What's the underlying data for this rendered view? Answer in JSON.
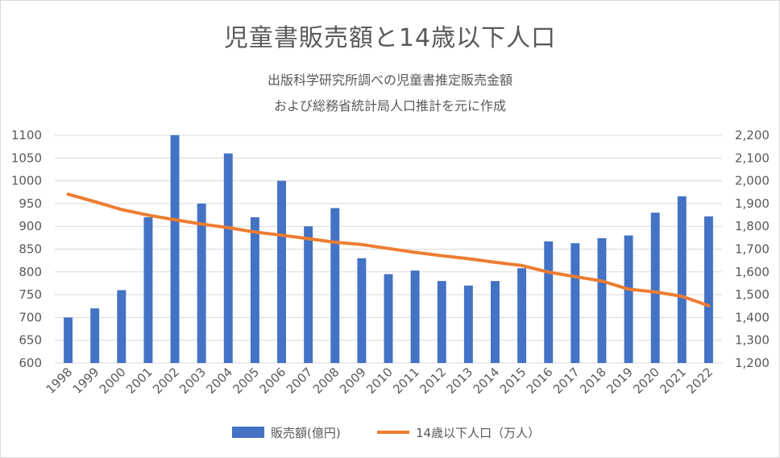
{
  "chart_data": {
    "type": "bar",
    "title": "児童書販売額と14歳以下人口",
    "subtitle_lines": [
      "出版科学研究所調べの児童書推定販売金額",
      "および総務省統計局人口推計を元に作成"
    ],
    "categories": [
      "1998",
      "1999",
      "2000",
      "2001",
      "2002",
      "2003",
      "2004",
      "2005",
      "2006",
      "2007",
      "2008",
      "2009",
      "2010",
      "2011",
      "2012",
      "2013",
      "2014",
      "2015",
      "2016",
      "2017",
      "2018",
      "2019",
      "2020",
      "2021",
      "2022"
    ],
    "series": [
      {
        "name": "販売額(億円)",
        "type": "bar",
        "axis": "left",
        "color": "#4472c4",
        "values": [
          700,
          720,
          760,
          920,
          1100,
          950,
          1060,
          920,
          1000,
          900,
          940,
          830,
          795,
          803,
          780,
          770,
          780,
          808,
          867,
          863,
          874,
          880,
          930,
          966,
          922
        ]
      },
      {
        "name": "14歳以下人口（万人）",
        "type": "line",
        "axis": "right",
        "color": "#ed7d31",
        "values": [
          1941,
          1908,
          1874,
          1849,
          1829,
          1810,
          1794,
          1775,
          1761,
          1746,
          1730,
          1720,
          1703,
          1686,
          1671,
          1658,
          1642,
          1628,
          1599,
          1579,
          1560,
          1524,
          1512,
          1493,
          1452
        ]
      }
    ],
    "y_left": {
      "min": 600,
      "max": 1100,
      "step": 50,
      "ticks": [
        "600",
        "650",
        "700",
        "750",
        "800",
        "850",
        "900",
        "950",
        "1000",
        "1050",
        "1100"
      ]
    },
    "y_right": {
      "min": 1200,
      "max": 2200,
      "step": 100,
      "ticks": [
        "1,200",
        "1,300",
        "1,400",
        "1,500",
        "1,600",
        "1,700",
        "1,800",
        "1,900",
        "2,000",
        "2,100",
        "2,200"
      ]
    },
    "grid": true,
    "legend_position": "bottom"
  }
}
